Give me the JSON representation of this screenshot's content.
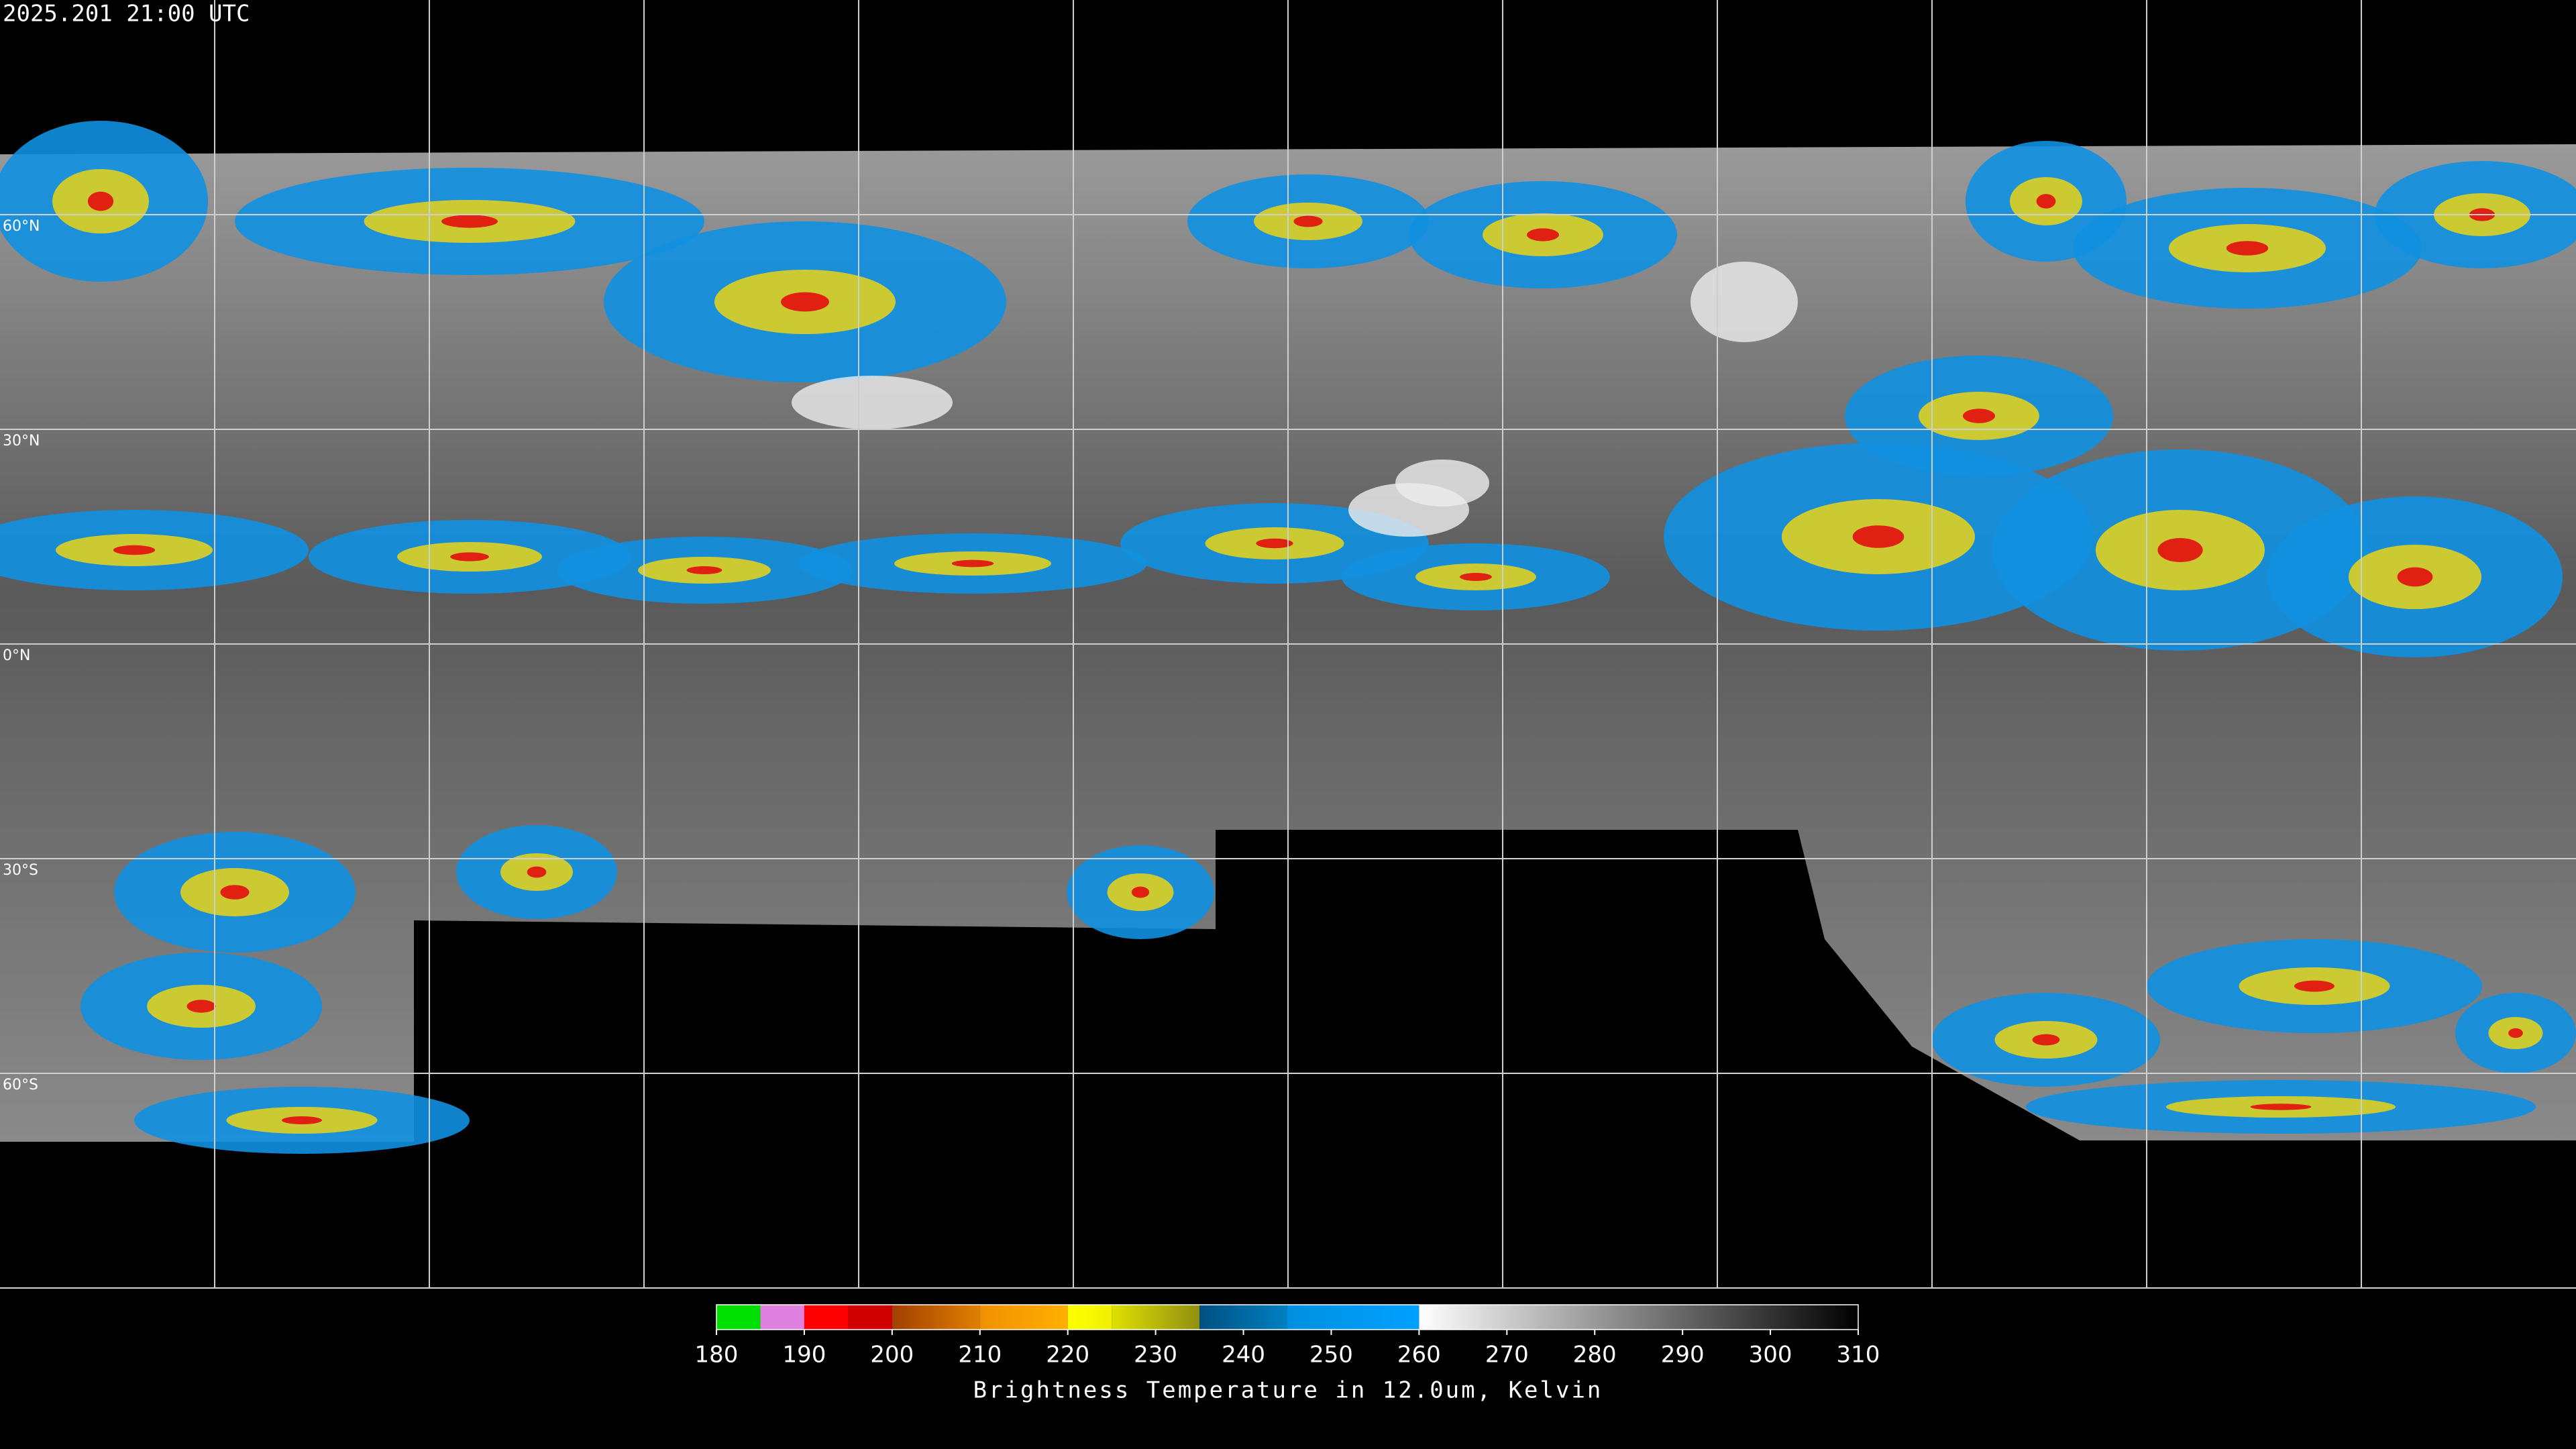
{
  "title": "2025.201 21:00 UTC",
  "map": {
    "latlim": [
      -90,
      90
    ],
    "lonlim": [
      -180,
      180
    ],
    "lat_lines": [
      {
        "value": 60,
        "label": "60°N"
      },
      {
        "value": 30,
        "label": "30°N"
      },
      {
        "value": 0,
        "label": "0°N"
      },
      {
        "value": -30,
        "label": "30°S"
      },
      {
        "value": -60,
        "label": "60°S"
      }
    ],
    "lon_lines": [
      -150,
      -120,
      -90,
      -60,
      -30,
      0,
      30,
      60,
      90,
      120,
      150
    ]
  },
  "colorbar": {
    "label": "Brightness Temperature in 12.0um, Kelvin",
    "lim": [
      180,
      310
    ],
    "ticks": [
      180,
      190,
      200,
      210,
      220,
      230,
      240,
      250,
      260,
      270,
      280,
      290,
      300,
      310
    ],
    "segments": [
      {
        "from": 180,
        "to": 185,
        "colors": [
          "#00e000",
          "#00e000"
        ]
      },
      {
        "from": 185,
        "to": 190,
        "colors": [
          "#e080e0",
          "#e080e0"
        ]
      },
      {
        "from": 190,
        "to": 195,
        "colors": [
          "#ff0000",
          "#ff0000"
        ]
      },
      {
        "from": 195,
        "to": 200,
        "colors": [
          "#d00000",
          "#d00000"
        ]
      },
      {
        "from": 200,
        "to": 210,
        "colors": [
          "#a04000",
          "#e08000"
        ]
      },
      {
        "from": 210,
        "to": 220,
        "colors": [
          "#f09000",
          "#ffb000"
        ]
      },
      {
        "from": 220,
        "to": 225,
        "colors": [
          "#ffff00",
          "#f0f000"
        ]
      },
      {
        "from": 225,
        "to": 235,
        "colors": [
          "#e0e000",
          "#909010"
        ]
      },
      {
        "from": 235,
        "to": 245,
        "colors": [
          "#005080",
          "#0080c0"
        ]
      },
      {
        "from": 245,
        "to": 260,
        "colors": [
          "#0090e0",
          "#00a0ff"
        ]
      },
      {
        "from": 260,
        "to": 310,
        "colors": [
          "#ffffff",
          "#000000"
        ]
      }
    ]
  }
}
